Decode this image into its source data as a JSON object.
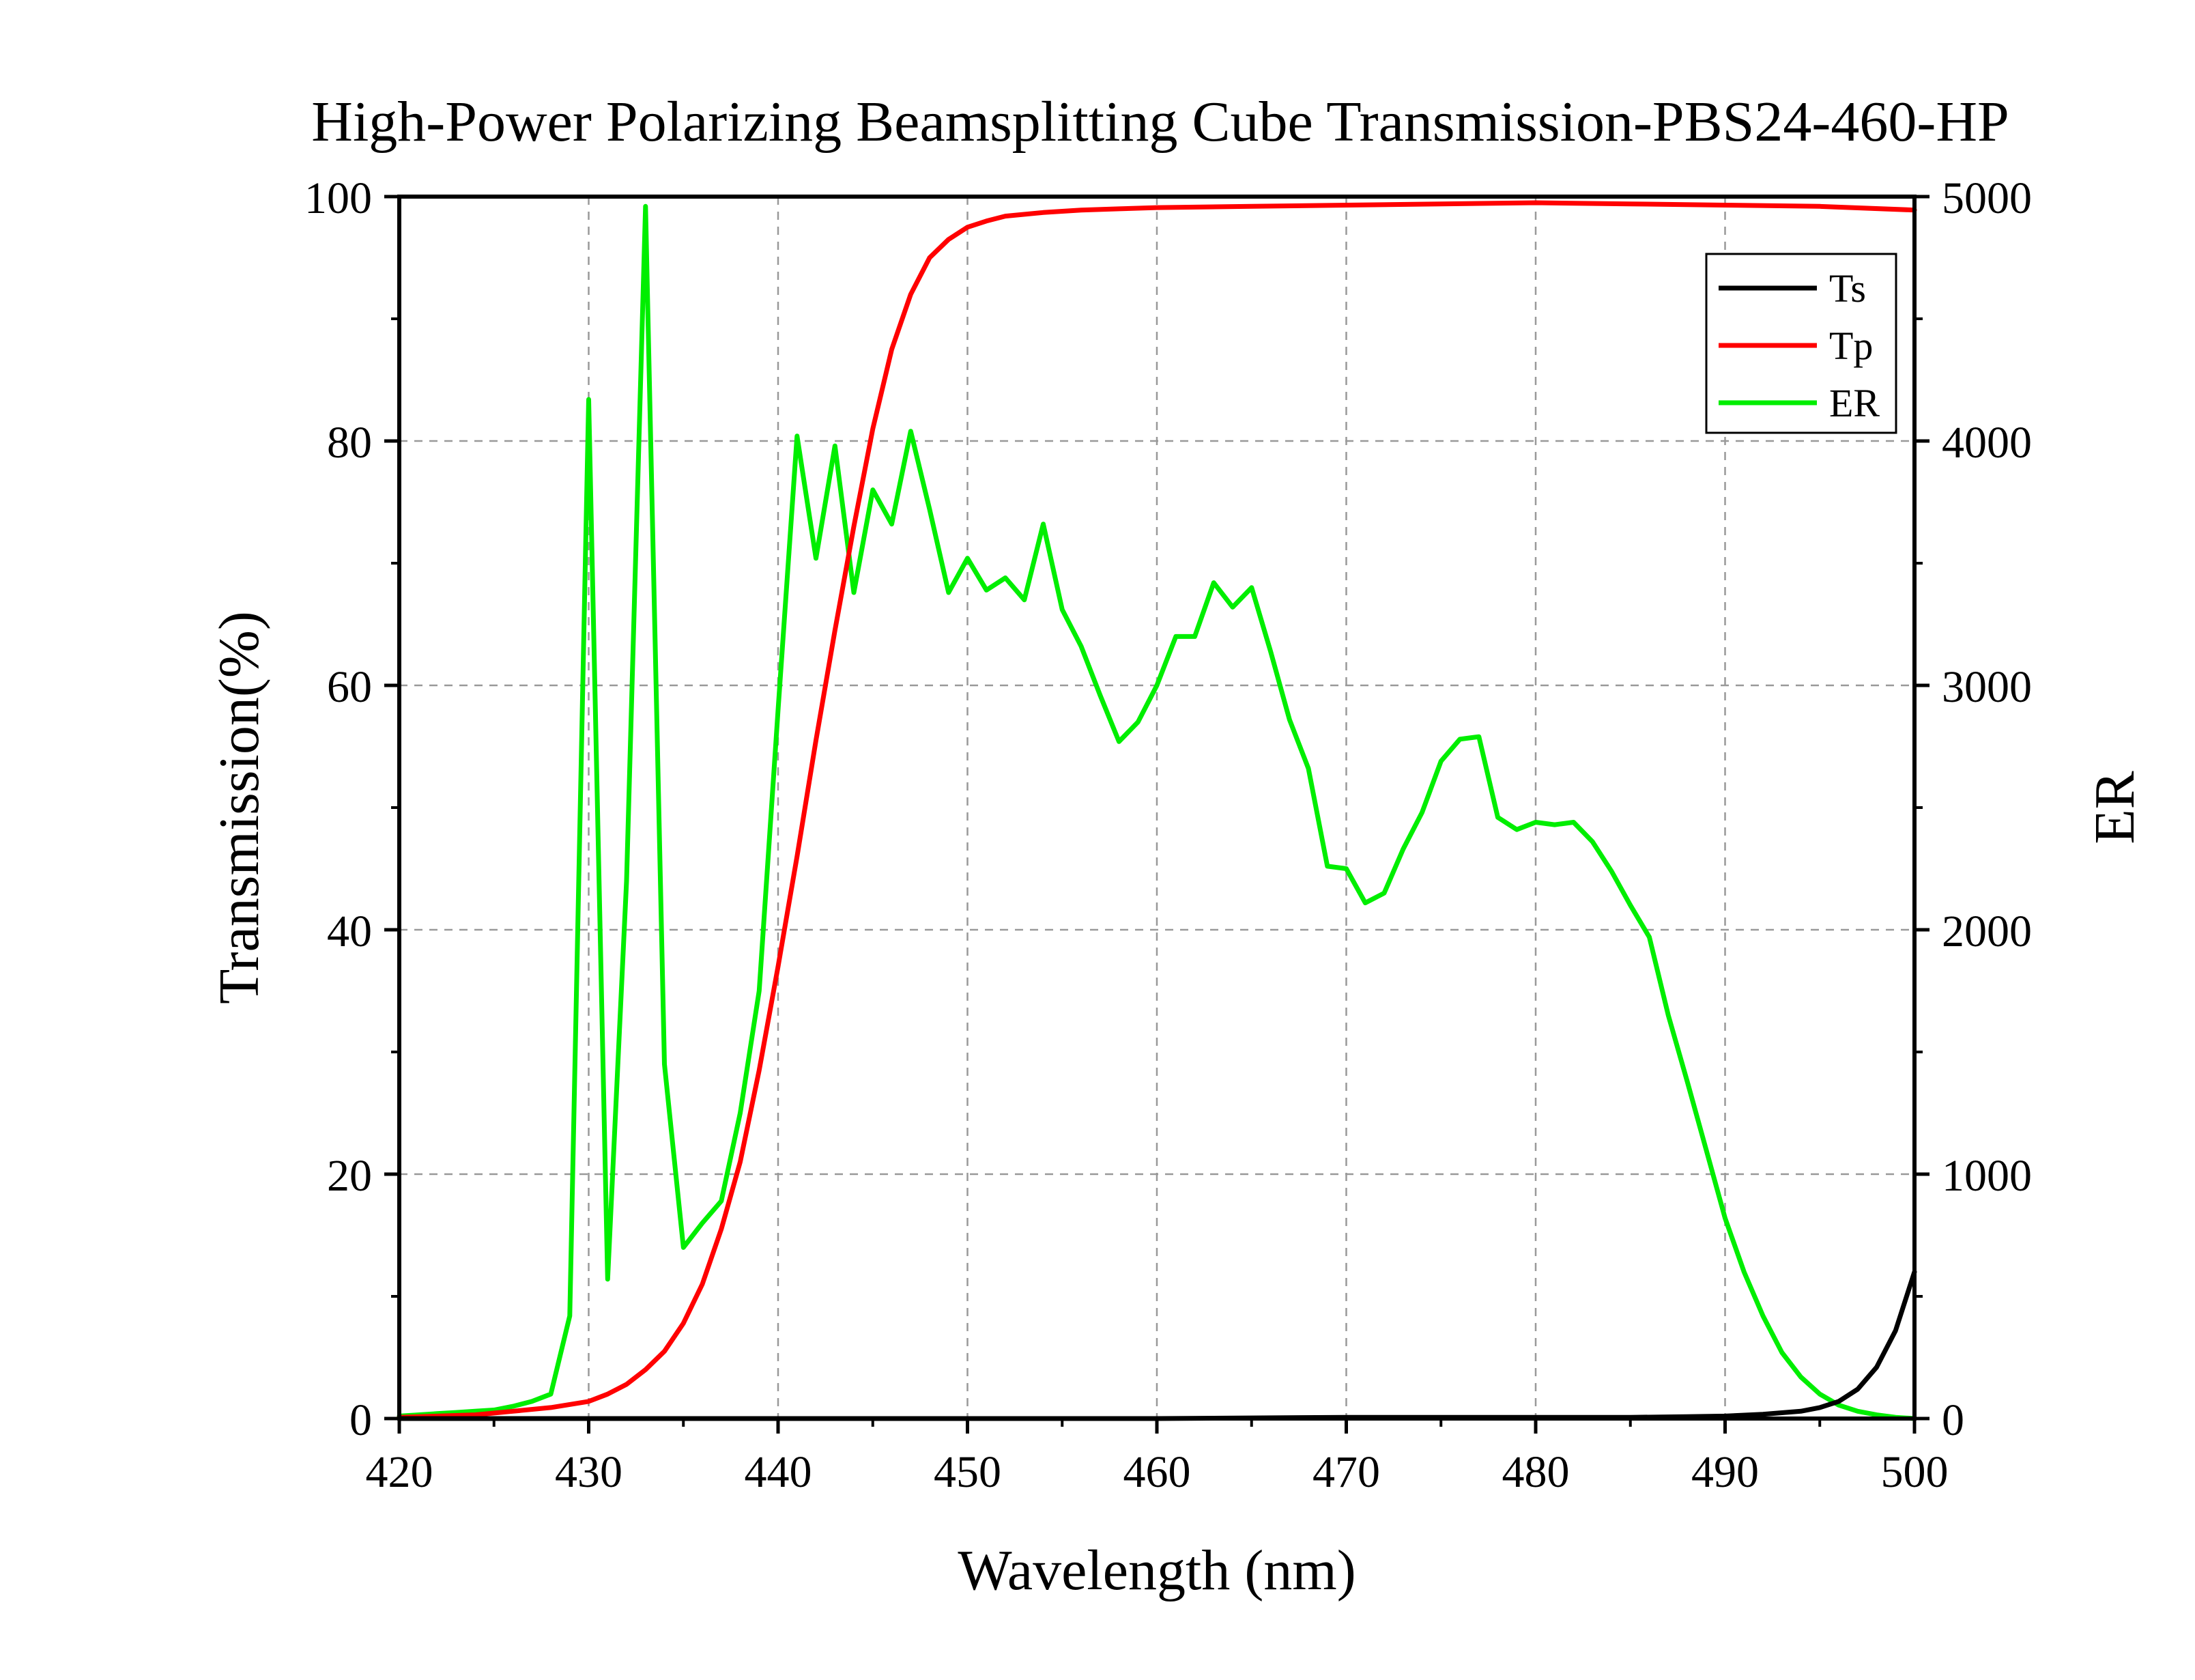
{
  "chart_data": {
    "type": "line",
    "title": "High-Power Polarizing Beamsplitting Cube Transmission-PBS24-460-HP",
    "xlabel": "Wavelength (nm)",
    "ylabel": "Transmission(%)",
    "y2label": "ER",
    "xlim": [
      420,
      500
    ],
    "ylim": [
      0,
      100
    ],
    "y2lim": [
      0,
      5000
    ],
    "x_ticks": [
      "420",
      "430",
      "440",
      "450",
      "460",
      "470",
      "480",
      "490",
      "500"
    ],
    "y_ticks": [
      "0",
      "20",
      "40",
      "60",
      "80",
      "100"
    ],
    "y2_ticks": [
      "0",
      "1000",
      "2000",
      "3000",
      "4000",
      "5000"
    ],
    "grid": true,
    "legend_position": "top-right",
    "series": [
      {
        "name": "Ts",
        "axis": "left",
        "color": "#000000",
        "x": [
          420,
          430,
          440,
          450,
          460,
          470,
          480,
          485,
          488,
          490,
          492,
          494,
          495,
          496,
          497,
          498,
          499,
          500
        ],
        "y": [
          0.0,
          0.0,
          0.0,
          0.0,
          0.0,
          0.1,
          0.1,
          0.1,
          0.15,
          0.2,
          0.35,
          0.6,
          0.9,
          1.4,
          2.4,
          4.2,
          7.2,
          12.0
        ]
      },
      {
        "name": "Tp",
        "axis": "left",
        "color": "#ff0000",
        "x": [
          420,
          422,
          424,
          426,
          428,
          430,
          431,
          432,
          433,
          434,
          435,
          436,
          437,
          438,
          439,
          440,
          441,
          442,
          443,
          444,
          445,
          446,
          447,
          448,
          449,
          450,
          451,
          452,
          454,
          456,
          458,
          460,
          465,
          470,
          475,
          480,
          485,
          490,
          495,
          500
        ],
        "y": [
          0.1,
          0.2,
          0.3,
          0.6,
          0.9,
          1.4,
          2.0,
          2.8,
          4.0,
          5.5,
          7.8,
          11.0,
          15.5,
          21.0,
          28.5,
          37.0,
          46.0,
          55.5,
          64.5,
          73.0,
          81.0,
          87.5,
          92.0,
          95.0,
          96.5,
          97.5,
          98.0,
          98.4,
          98.7,
          98.9,
          99.0,
          99.1,
          99.2,
          99.3,
          99.4,
          99.5,
          99.4,
          99.3,
          99.2,
          98.9
        ]
      },
      {
        "name": "ER",
        "axis": "right",
        "color": "#00ee00",
        "x": [
          420,
          421,
          422,
          423,
          424,
          425,
          426,
          427,
          428,
          429,
          430,
          431,
          432,
          433,
          434,
          435,
          436,
          437,
          438,
          439,
          440,
          441,
          442,
          443,
          444,
          445,
          446,
          447,
          448,
          449,
          450,
          451,
          452,
          453,
          454,
          455,
          456,
          457,
          458,
          459,
          460,
          461,
          462,
          463,
          464,
          465,
          466,
          467,
          468,
          469,
          470,
          471,
          472,
          473,
          474,
          475,
          476,
          477,
          478,
          479,
          480,
          481,
          482,
          483,
          484,
          485,
          486,
          487,
          488,
          489,
          490,
          491,
          492,
          493,
          494,
          495,
          496,
          497,
          498,
          499,
          500
        ],
        "y": [
          10,
          15,
          20,
          25,
          30,
          35,
          50,
          70,
          100,
          420,
          4170,
          570,
          2200,
          4960,
          1450,
          700,
          800,
          890,
          1250,
          1750,
          2900,
          4020,
          3520,
          3980,
          3380,
          3800,
          3660,
          4040,
          3720,
          3380,
          3520,
          3390,
          3440,
          3350,
          3660,
          3310,
          3160,
          2960,
          2770,
          2850,
          3000,
          3200,
          3200,
          3420,
          3320,
          3400,
          3140,
          2860,
          2660,
          2260,
          2250,
          2110,
          2150,
          2330,
          2480,
          2690,
          2780,
          2790,
          2460,
          2410,
          2440,
          2430,
          2440,
          2360,
          2240,
          2100,
          1970,
          1650,
          1380,
          1100,
          820,
          600,
          420,
          270,
          170,
          100,
          55,
          30,
          15,
          5,
          0
        ]
      }
    ]
  }
}
